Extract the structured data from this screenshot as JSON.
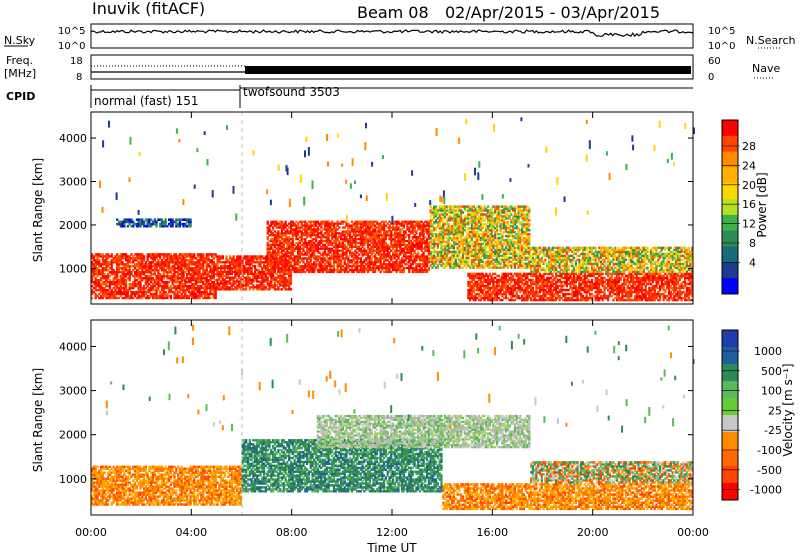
{
  "header": {
    "station": "Inuvik (fitACF)",
    "beam": "Beam 08",
    "dates": "02/Apr/2015 - 03/Apr/2015"
  },
  "time_axis": {
    "label": "Time UT",
    "ticks": [
      "00:00",
      "04:00",
      "08:00",
      "12:00",
      "16:00",
      "20:00",
      "00:00"
    ],
    "range_hours": [
      0,
      24
    ]
  },
  "noise_panel": {
    "left_label": "N.Sky",
    "right_label": "N.Search",
    "left_ticks": [
      "10^5",
      "10^0"
    ],
    "right_ticks": [
      "10^5",
      "10^0"
    ]
  },
  "freq_panel": {
    "left_label_top": "Freq.",
    "left_label_bottom": "[MHz]",
    "right_label": "Nave",
    "left_ticks": [
      "18",
      "8"
    ],
    "right_ticks": [
      "60",
      "0"
    ]
  },
  "cpid_panel": {
    "label": "CPID",
    "modes": [
      {
        "name": "normal (fast) 151",
        "start_h": 0,
        "end_h": 6
      },
      {
        "name": "twofsound 3503",
        "start_h": 6,
        "end_h": 24
      }
    ]
  },
  "power_colorbar": {
    "label": "Power [dB]",
    "ticks": [
      "28",
      "24",
      "20",
      "16",
      "12",
      "8",
      "4"
    ],
    "colors": [
      "#ff0000",
      "#ff4500",
      "#ff8c00",
      "#ffb000",
      "#ffd700",
      "#b8e020",
      "#3cb34a",
      "#2e8b57",
      "#1a6b7a",
      "#1e3c8c",
      "#0000ff"
    ]
  },
  "velocity_colorbar": {
    "label": "Velocity [m s⁻¹]",
    "ticks": [
      "1000",
      "500",
      "100",
      "25",
      "-25",
      "-100",
      "-500",
      "-1000"
    ],
    "colors": [
      "#1f3ca8",
      "#1f5fa0",
      "#2e8b57",
      "#5cb85c",
      "#66cc33",
      "#c8c8c8",
      "#ff8c00",
      "#ff6a00",
      "#ff4500",
      "#ff0000"
    ]
  },
  "chart_data": [
    {
      "type": "heatmap",
      "name": "power",
      "ylabel": "Slant Range [km]",
      "xlabel": "Time UT",
      "xlim_hours": [
        0,
        24
      ],
      "ylim_km": [
        180,
        4600
      ],
      "yticks": [
        1000,
        2000,
        3000,
        4000
      ],
      "bands": [
        {
          "t0": 0.0,
          "t1": 5.0,
          "r0": 300,
          "r1": 1350,
          "level": "high"
        },
        {
          "t0": 5.0,
          "t1": 8.0,
          "r0": 500,
          "r1": 1300,
          "level": "high"
        },
        {
          "t0": 7.0,
          "t1": 13.5,
          "r0": 900,
          "r1": 2100,
          "level": "high"
        },
        {
          "t0": 13.5,
          "t1": 17.5,
          "r0": 1000,
          "r1": 2450,
          "level": "mid"
        },
        {
          "t0": 1.0,
          "t1": 4.0,
          "r0": 1950,
          "r1": 2150,
          "level": "low"
        },
        {
          "t0": 15.0,
          "t1": 24.0,
          "r0": 250,
          "r1": 900,
          "level": "high"
        },
        {
          "t0": 17.5,
          "t1": 24.0,
          "r0": 900,
          "r1": 1500,
          "level": "mid"
        }
      ]
    },
    {
      "type": "heatmap",
      "name": "velocity",
      "ylabel": "Slant Range [km]",
      "xlabel": "Time UT",
      "xlim_hours": [
        0,
        24
      ],
      "ylim_km": [
        180,
        4600
      ],
      "yticks": [
        1000,
        2000,
        3000,
        4000
      ],
      "bands": [
        {
          "t0": 0.0,
          "t1": 6.0,
          "r0": 400,
          "r1": 1300,
          "level": "negative"
        },
        {
          "t0": 6.0,
          "t1": 14.0,
          "r0": 700,
          "r1": 1900,
          "level": "positive"
        },
        {
          "t0": 9.0,
          "t1": 17.5,
          "r0": 1700,
          "r1": 2450,
          "level": "zero"
        },
        {
          "t0": 14.0,
          "t1": 24.0,
          "r0": 300,
          "r1": 900,
          "level": "negative"
        },
        {
          "t0": 17.5,
          "t1": 24.0,
          "r0": 900,
          "r1": 1400,
          "level": "mixed"
        }
      ]
    }
  ]
}
